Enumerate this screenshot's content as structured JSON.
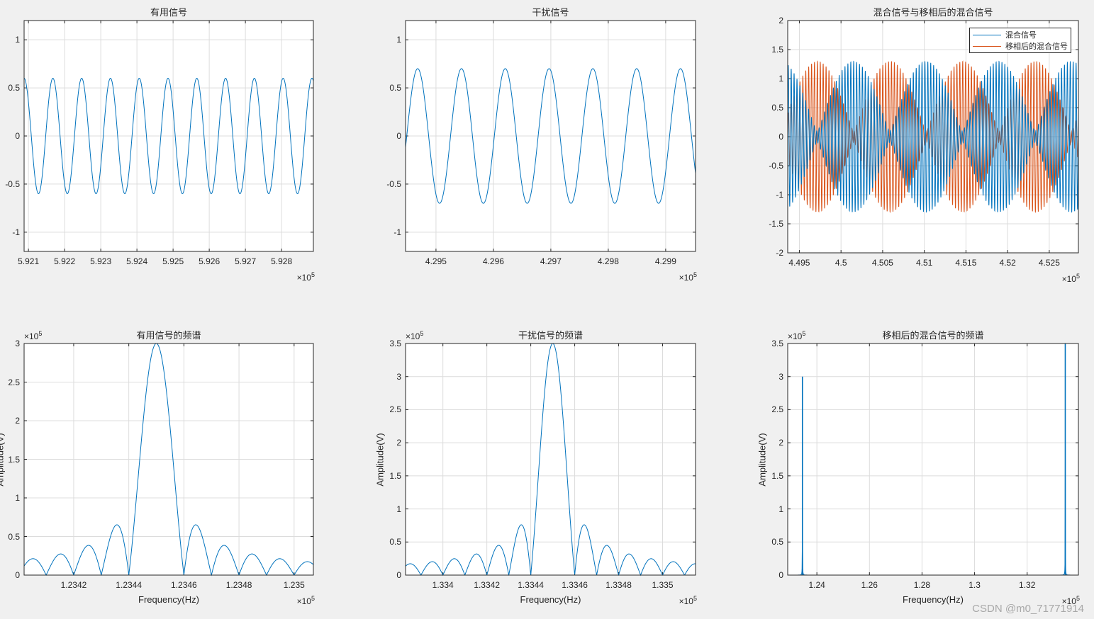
{
  "colors": {
    "series1": "#0072BD",
    "series2": "#D95319",
    "grid": "#dcdcdc",
    "axis": "#262626",
    "bg": "#f0f0f0"
  },
  "watermark": "CSDN @m0_71771914",
  "chart_data": [
    {
      "id": "p1",
      "type": "line",
      "title": "有用信号",
      "xlabel": "",
      "ylabel": "",
      "x_exponent": "×10^5",
      "xlim": [
        5.92088,
        5.92888
      ],
      "ylim": [
        -1.2,
        1.2
      ],
      "xticks": [
        "5.921",
        "5.922",
        "5.923",
        "5.924",
        "5.925",
        "5.926",
        "5.927",
        "5.928"
      ],
      "yticks": [
        "1",
        "0.5",
        "0",
        "-0.5",
        "-1"
      ],
      "grid": true,
      "series": [
        {
          "name": "有用信号",
          "amplitude": 0.6,
          "cycles_visible": 10,
          "color": "#0072BD"
        }
      ]
    },
    {
      "id": "p2",
      "type": "line",
      "title": "干扰信号",
      "xlabel": "",
      "ylabel": "",
      "x_exponent": "×10^5",
      "xlim": [
        4.29447,
        4.29952
      ],
      "ylim": [
        -1.2,
        1.2
      ],
      "xticks": [
        "4.295",
        "4.296",
        "4.297",
        "4.298",
        "4.299"
      ],
      "yticks": [
        "1",
        "0.5",
        "0",
        "-0.5",
        "-1"
      ],
      "grid": true,
      "series": [
        {
          "name": "干扰信号",
          "amplitude": 0.7,
          "cycles_visible": 6.7,
          "color": "#0072BD"
        }
      ]
    },
    {
      "id": "p3",
      "type": "line",
      "title": "混合信号与移相后的混合信号",
      "xlabel": "",
      "ylabel": "",
      "x_exponent": "×10^5",
      "xlim": [
        4.4936,
        4.5285
      ],
      "ylim": [
        -2,
        2
      ],
      "xticks": [
        "4.495",
        "4.5",
        "4.505",
        "4.51",
        "4.515",
        "4.52",
        "4.525"
      ],
      "yticks": [
        "2",
        "1.5",
        "1",
        "0.5",
        "0",
        "-0.5",
        "-1",
        "-1.5",
        "-2"
      ],
      "grid": true,
      "legend": {
        "position": "northeast",
        "entries": [
          "混合信号",
          "移相后的混合信号"
        ]
      },
      "series": [
        {
          "name": "混合信号",
          "amplitude_max": 1.3,
          "color": "#0072BD"
        },
        {
          "name": "移相后的混合信号",
          "amplitude_max": 1.3,
          "color": "#D95319"
        }
      ]
    },
    {
      "id": "p4",
      "type": "line",
      "title": "有用信号的频谱",
      "xlabel": "Frequency(Hz)",
      "ylabel": "Amplitude(V)",
      "x_exponent": "×10^5",
      "y_exponent": "×10^5",
      "xlim": [
        1.23402,
        1.23507
      ],
      "ylim": [
        0,
        3
      ],
      "xticks": [
        "1.2342",
        "1.2344",
        "1.2346",
        "1.2348",
        "1.235"
      ],
      "yticks": [
        "3",
        "2.5",
        "2",
        "1.5",
        "1",
        "0.5",
        "0"
      ],
      "grid": true,
      "peak": {
        "x": 1.2345,
        "y": 3.0
      },
      "sidelobe_peaks": [
        0.21,
        0.27,
        0.38,
        0.65,
        0.65,
        0.38,
        0.27,
        0.21,
        0.17
      ],
      "series": [
        {
          "name": "有用信号的频谱",
          "color": "#0072BD"
        }
      ]
    },
    {
      "id": "p5",
      "type": "line",
      "title": "干扰信号的频谱",
      "xlabel": "Frequency(Hz)",
      "ylabel": "Amplitude(V)",
      "x_exponent": "×10^5",
      "y_exponent": "×10^5",
      "xlim": [
        1.33383,
        1.33515
      ],
      "ylim": [
        0,
        3.5
      ],
      "xticks": [
        "1.334",
        "1.3342",
        "1.3344",
        "1.3346",
        "1.3348",
        "1.335"
      ],
      "yticks": [
        "3.5",
        "3",
        "2.5",
        "2",
        "1.5",
        "1",
        "0.5",
        "0"
      ],
      "grid": true,
      "peak": {
        "x": 1.3345,
        "y": 3.5
      },
      "sidelobe_peaks": [
        0.2,
        0.25,
        0.32,
        0.45,
        0.76,
        0.76,
        0.45,
        0.32,
        0.25,
        0.2,
        0.17
      ],
      "series": [
        {
          "name": "干扰信号的频谱",
          "color": "#0072BD"
        }
      ]
    },
    {
      "id": "p6",
      "type": "line",
      "title": "移相后的混合信号的频谱",
      "xlabel": "Frequency(Hz)",
      "ylabel": "Amplitude(V)",
      "x_exponent": "×10^5",
      "y_exponent": "×10^5",
      "xlim": [
        1.2289,
        1.3395
      ],
      "ylim": [
        0,
        3.5
      ],
      "xticks": [
        "1.24",
        "1.26",
        "1.28",
        "1.3",
        "1.32"
      ],
      "yticks": [
        "3.5",
        "3",
        "2.5",
        "2",
        "1.5",
        "1",
        "0.5",
        "0"
      ],
      "grid": true,
      "peaks": [
        {
          "x": 1.2345,
          "y": 3.0
        },
        {
          "x": 1.3345,
          "y": 3.5
        }
      ],
      "series": [
        {
          "name": "移相后的混合信号的频谱",
          "color": "#0072BD"
        }
      ]
    }
  ]
}
